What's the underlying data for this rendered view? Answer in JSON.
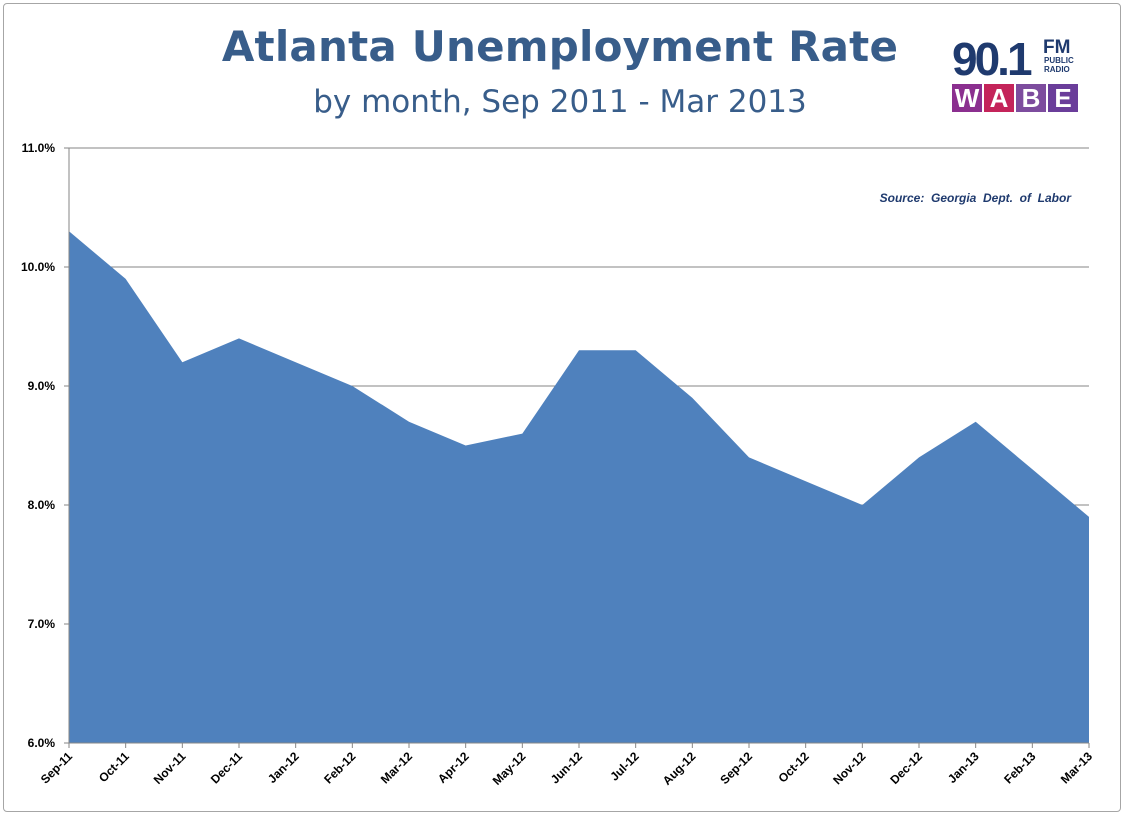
{
  "chart_data": {
    "type": "area",
    "title": "Atlanta Unemployment Rate",
    "subtitle": "by month, Sep 2011 - Mar 2013",
    "annotation": "Source:  Georgia  Dept.  of  Labor",
    "categories": [
      "Sep-11",
      "Oct-11",
      "Nov-11",
      "Dec-11",
      "Jan-12",
      "Feb-12",
      "Mar-12",
      "Apr-12",
      "May-12",
      "Jun-12",
      "Jul-12",
      "Aug-12",
      "Sep-12",
      "Oct-12",
      "Nov-12",
      "Dec-12",
      "Jan-13",
      "Feb-13",
      "Mar-13"
    ],
    "values": [
      10.3,
      9.9,
      9.2,
      9.4,
      9.2,
      9.0,
      8.7,
      8.5,
      8.6,
      9.3,
      9.3,
      8.9,
      8.4,
      8.2,
      8.0,
      8.4,
      8.7,
      8.3,
      7.9
    ],
    "ylim": [
      6.0,
      11.0
    ],
    "yticks": [
      "6.0%",
      "7.0%",
      "8.0%",
      "9.0%",
      "10.0%",
      "11.0%"
    ],
    "ytick_values": [
      6,
      7,
      8,
      9,
      10,
      11
    ],
    "grid": true,
    "fill_color": "#4f81bd",
    "xlabel": "",
    "ylabel": ""
  },
  "logo": {
    "number": "90.1",
    "fm": "FM",
    "line1": "PUBLIC",
    "line2": "RADIO",
    "letters": [
      {
        "char": "W",
        "color": "#8b2f8f"
      },
      {
        "char": "A",
        "color": "#c4245a"
      },
      {
        "char": "B",
        "color": "#7d4c9e"
      },
      {
        "char": "E",
        "color": "#6a3d9a"
      }
    ]
  }
}
